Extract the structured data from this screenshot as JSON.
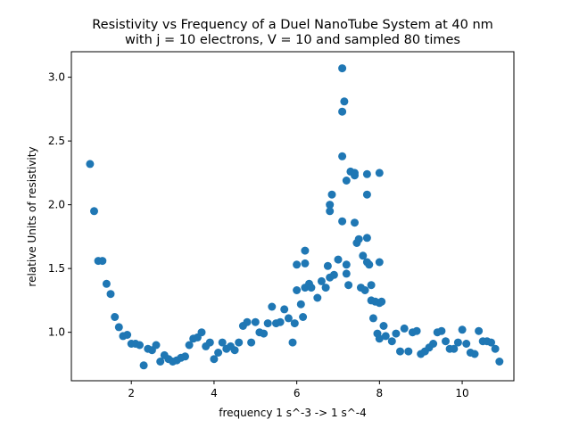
{
  "chart_data": {
    "type": "scatter",
    "title": "Resistivity vs Frequency of a Duel NanoTube System at 40 nm\nwith j = 10 electrons, V = 10 and sampled 80 times",
    "title_lines": [
      "Resistivity vs Frequency of a Duel NanoTube System at 40 nm",
      "with j = 10 electrons, V = 10 and sampled 80 times"
    ],
    "xlabel": "frequency 1 s^-3 -> 1 s^-4",
    "ylabel": "relative Units of resistivity",
    "xlim": [
      0.55,
      11.25
    ],
    "ylim": [
      0.62,
      3.2
    ],
    "xticks": [
      2,
      4,
      6,
      8,
      10
    ],
    "yticks": [
      1.0,
      1.5,
      2.0,
      2.5,
      3.0
    ],
    "xtick_labels": [
      "2",
      "4",
      "6",
      "8",
      "10"
    ],
    "ytick_labels": [
      "1.0",
      "1.5",
      "2.0",
      "2.5",
      "3.0"
    ],
    "grid": false,
    "legend": "none",
    "marker_color": "#1f77b4",
    "points": [
      [
        1.0,
        2.32
      ],
      [
        1.1,
        1.95
      ],
      [
        1.2,
        1.56
      ],
      [
        1.3,
        1.56
      ],
      [
        1.4,
        1.38
      ],
      [
        1.5,
        1.3
      ],
      [
        1.6,
        1.12
      ],
      [
        1.7,
        1.04
      ],
      [
        1.8,
        0.97
      ],
      [
        1.9,
        0.98
      ],
      [
        2.0,
        0.91
      ],
      [
        2.1,
        0.91
      ],
      [
        2.2,
        0.9
      ],
      [
        2.3,
        0.74
      ],
      [
        2.4,
        0.87
      ],
      [
        2.5,
        0.86
      ],
      [
        2.6,
        0.9
      ],
      [
        2.7,
        0.77
      ],
      [
        2.8,
        0.82
      ],
      [
        2.9,
        0.79
      ],
      [
        3.0,
        0.77
      ],
      [
        3.1,
        0.78
      ],
      [
        3.2,
        0.8
      ],
      [
        3.3,
        0.81
      ],
      [
        3.4,
        0.9
      ],
      [
        3.5,
        0.95
      ],
      [
        3.6,
        0.96
      ],
      [
        3.7,
        1.0
      ],
      [
        3.8,
        0.89
      ],
      [
        3.9,
        0.92
      ],
      [
        4.0,
        0.79
      ],
      [
        4.1,
        0.84
      ],
      [
        4.2,
        0.92
      ],
      [
        4.3,
        0.87
      ],
      [
        4.4,
        0.89
      ],
      [
        4.5,
        0.86
      ],
      [
        4.6,
        0.92
      ],
      [
        4.7,
        1.05
      ],
      [
        4.8,
        1.08
      ],
      [
        4.9,
        0.92
      ],
      [
        5.0,
        1.08
      ],
      [
        5.1,
        1.0
      ],
      [
        5.2,
        0.99
      ],
      [
        5.3,
        1.07
      ],
      [
        5.4,
        1.2
      ],
      [
        5.5,
        1.07
      ],
      [
        5.6,
        1.08
      ],
      [
        5.7,
        1.18
      ],
      [
        5.8,
        1.11
      ],
      [
        5.9,
        0.92
      ],
      [
        5.95,
        1.07
      ],
      [
        6.0,
        1.33
      ],
      [
        6.0,
        1.53
      ],
      [
        6.1,
        1.22
      ],
      [
        6.15,
        1.12
      ],
      [
        6.2,
        1.35
      ],
      [
        6.2,
        1.54
      ],
      [
        6.2,
        1.64
      ],
      [
        6.3,
        1.38
      ],
      [
        6.35,
        1.35
      ],
      [
        6.5,
        1.27
      ],
      [
        6.6,
        1.4
      ],
      [
        6.7,
        1.35
      ],
      [
        6.75,
        1.52
      ],
      [
        6.8,
        1.43
      ],
      [
        6.8,
        2.0
      ],
      [
        6.8,
        1.95
      ],
      [
        6.85,
        2.08
      ],
      [
        6.9,
        1.45
      ],
      [
        7.0,
        1.57
      ],
      [
        7.1,
        1.87
      ],
      [
        7.1,
        2.38
      ],
      [
        7.1,
        2.73
      ],
      [
        7.1,
        3.07
      ],
      [
        7.15,
        2.81
      ],
      [
        7.2,
        2.19
      ],
      [
        7.2,
        1.53
      ],
      [
        7.2,
        1.46
      ],
      [
        7.25,
        1.37
      ],
      [
        7.3,
        2.26
      ],
      [
        7.4,
        2.25
      ],
      [
        7.4,
        2.23
      ],
      [
        7.4,
        1.86
      ],
      [
        7.45,
        1.7
      ],
      [
        7.5,
        1.73
      ],
      [
        7.55,
        1.35
      ],
      [
        7.6,
        1.6
      ],
      [
        7.65,
        1.33
      ],
      [
        7.7,
        2.08
      ],
      [
        7.7,
        2.24
      ],
      [
        7.7,
        1.74
      ],
      [
        7.7,
        1.55
      ],
      [
        7.75,
        1.53
      ],
      [
        7.8,
        1.37
      ],
      [
        7.8,
        1.25
      ],
      [
        7.85,
        1.11
      ],
      [
        7.9,
        1.24
      ],
      [
        7.95,
        0.99
      ],
      [
        8.0,
        1.23
      ],
      [
        8.0,
        1.55
      ],
      [
        8.0,
        2.25
      ],
      [
        8.05,
        1.24
      ],
      [
        8.0,
        0.95
      ],
      [
        8.1,
        1.05
      ],
      [
        8.15,
        0.97
      ],
      [
        8.3,
        0.93
      ],
      [
        8.4,
        0.99
      ],
      [
        8.5,
        0.85
      ],
      [
        8.6,
        1.03
      ],
      [
        8.7,
        0.85
      ],
      [
        8.8,
        1.0
      ],
      [
        8.9,
        1.01
      ],
      [
        9.0,
        0.83
      ],
      [
        9.1,
        0.85
      ],
      [
        9.2,
        0.88
      ],
      [
        9.3,
        0.91
      ],
      [
        9.4,
        1.0
      ],
      [
        9.5,
        1.01
      ],
      [
        9.6,
        0.93
      ],
      [
        9.7,
        0.87
      ],
      [
        9.8,
        0.87
      ],
      [
        9.9,
        0.92
      ],
      [
        10.0,
        1.02
      ],
      [
        10.1,
        0.91
      ],
      [
        10.2,
        0.84
      ],
      [
        10.3,
        0.83
      ],
      [
        10.4,
        1.01
      ],
      [
        10.5,
        0.93
      ],
      [
        10.6,
        0.93
      ],
      [
        10.7,
        0.92
      ],
      [
        10.8,
        0.87
      ],
      [
        10.9,
        0.77
      ]
    ]
  }
}
